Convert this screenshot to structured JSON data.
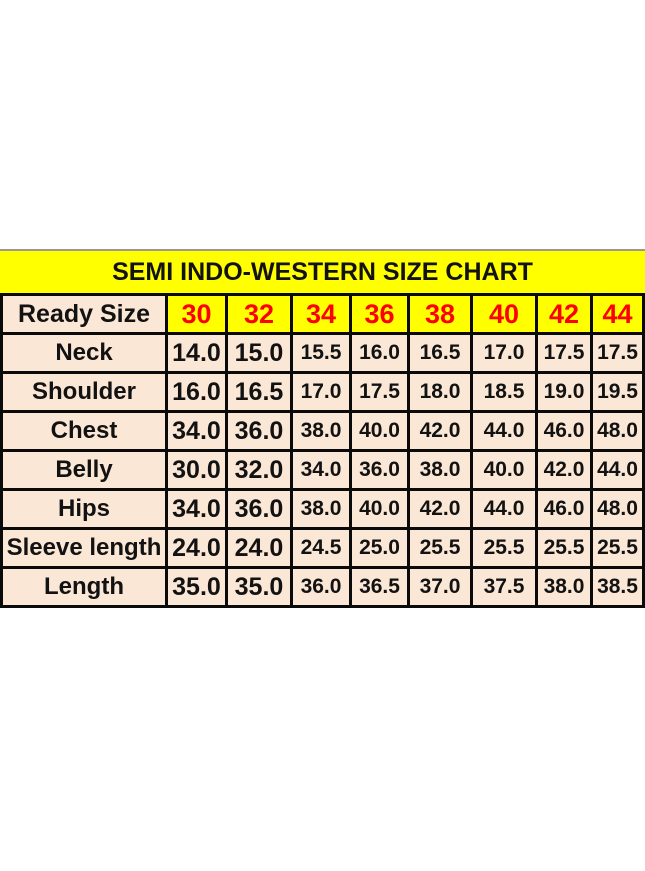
{
  "chart_data": {
    "type": "table",
    "title": "SEMI INDO-WESTERN SIZE CHART",
    "header_label": "Ready Size",
    "sizes": [
      "30",
      "32",
      "34",
      "36",
      "38",
      "40",
      "42",
      "44"
    ],
    "rows": [
      {
        "label": "Neck",
        "values": [
          "14.0",
          "15.0",
          "15.5",
          "16.0",
          "16.5",
          "17.0",
          "17.5",
          "17.5"
        ]
      },
      {
        "label": "Shoulder",
        "values": [
          "16.0",
          "16.5",
          "17.0",
          "17.5",
          "18.0",
          "18.5",
          "19.0",
          "19.5"
        ]
      },
      {
        "label": "Chest",
        "values": [
          "34.0",
          "36.0",
          "38.0",
          "40.0",
          "42.0",
          "44.0",
          "46.0",
          "48.0"
        ]
      },
      {
        "label": "Belly",
        "values": [
          "30.0",
          "32.0",
          "34.0",
          "36.0",
          "38.0",
          "40.0",
          "42.0",
          "44.0"
        ]
      },
      {
        "label": "Hips",
        "values": [
          "34.0",
          "36.0",
          "38.0",
          "40.0",
          "42.0",
          "44.0",
          "46.0",
          "48.0"
        ]
      },
      {
        "label": "Sleeve length",
        "values": [
          "24.0",
          "24.0",
          "24.5",
          "25.0",
          "25.5",
          "25.5",
          "25.5",
          "25.5"
        ]
      },
      {
        "label": "Length",
        "values": [
          "35.0",
          "35.0",
          "36.0",
          "36.5",
          "37.0",
          "37.5",
          "38.0",
          "38.5"
        ]
      }
    ],
    "colors": {
      "title_bg": "#ffff00",
      "size_text": "#fe0000",
      "cell_bg": "#fbe7d6",
      "border": "#0a0a0a",
      "text": "#121212"
    },
    "layout_hints": {
      "grid": "on",
      "header_row_background": "yellow",
      "data_row_background": "cream"
    }
  }
}
